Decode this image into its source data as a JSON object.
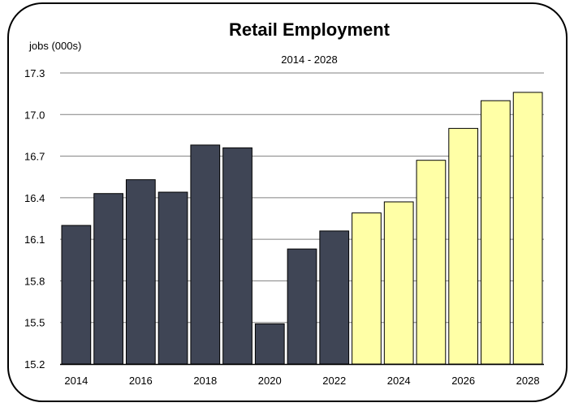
{
  "chart_data": {
    "type": "bar",
    "title": "Retail Employment",
    "subtitle": "2014 - 2028",
    "ylabel": "jobs (000s)",
    "xlabel": "",
    "ylim": [
      15.2,
      17.3
    ],
    "yticks": [
      "15.2",
      "15.5",
      "15.8",
      "16.1",
      "16.4",
      "16.7",
      "17.0",
      "17.3"
    ],
    "grid": true,
    "categories": [
      "2014",
      "2015",
      "2016",
      "2017",
      "2018",
      "2019",
      "2020",
      "2021",
      "2022",
      "2023",
      "2024",
      "2025",
      "2026",
      "2027",
      "2028"
    ],
    "xtick_labels": [
      "2014",
      "",
      "2016",
      "",
      "2018",
      "",
      "2020",
      "",
      "2022",
      "",
      "2024",
      "",
      "2026",
      "",
      "2028"
    ],
    "values": [
      16.2,
      16.43,
      16.53,
      16.44,
      16.78,
      16.76,
      15.49,
      16.03,
      16.16,
      16.29,
      16.37,
      16.67,
      16.9,
      17.1,
      17.16
    ],
    "bar_colors": [
      "#3f4555",
      "#3f4555",
      "#3f4555",
      "#3f4555",
      "#3f4555",
      "#3f4555",
      "#3f4555",
      "#3f4555",
      "#3f4555",
      "#ffffa6",
      "#ffffa6",
      "#ffffa6",
      "#ffffa6",
      "#ffffa6",
      "#ffffa6"
    ],
    "colors": {
      "historical": "#3f4555",
      "forecast": "#ffffa6",
      "gridline": "#808080",
      "frame": "#000000"
    }
  }
}
